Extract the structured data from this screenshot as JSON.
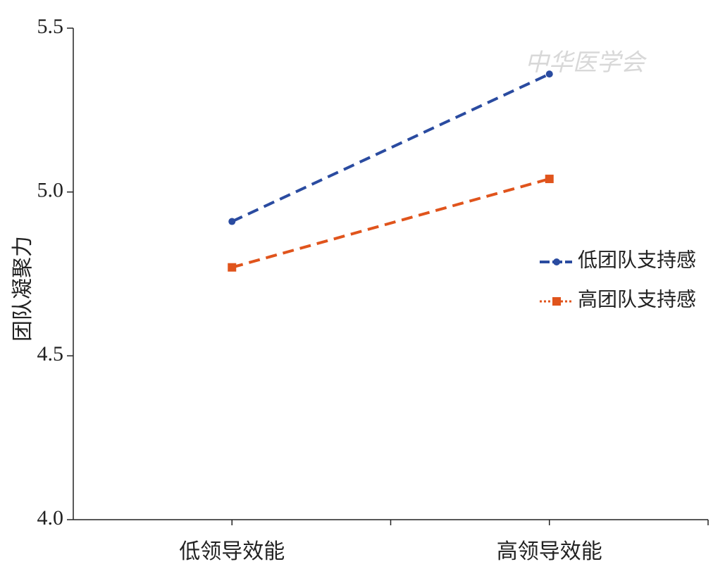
{
  "chart_data": {
    "type": "line",
    "watermark": "中华医学会",
    "ylabel": "团队凝聚力",
    "categories": [
      "低领导效能",
      "高领导效能"
    ],
    "series": [
      {
        "name": "低团队支持感",
        "color": "#2a4ba0",
        "values": [
          4.91,
          5.36
        ]
      },
      {
        "name": "高团队支持感",
        "color": "#e0541c",
        "values": [
          4.77,
          5.04
        ]
      }
    ],
    "ylim": [
      4,
      5.5
    ],
    "yticks": [
      {
        "value": 4,
        "label": "4.0"
      },
      {
        "value": 4.5,
        "label": "4.5"
      },
      {
        "value": 5,
        "label": "5.0"
      },
      {
        "value": 5.5,
        "label": "5.5"
      }
    ],
    "legend": "right"
  }
}
